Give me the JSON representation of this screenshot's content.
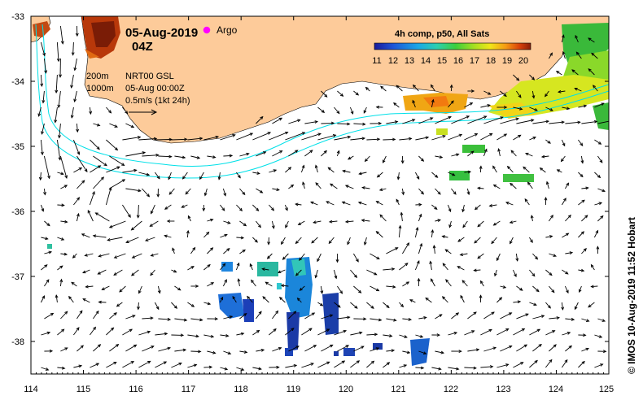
{
  "map": {
    "title_date": "05-Aug-2019",
    "title_time": "04Z",
    "argo_label": "Argo",
    "isobaths": [
      "200m",
      "1000m"
    ],
    "product": "NRT00 GSL",
    "analysis_time": "05-Aug 00:00Z",
    "vector_scale": "0.5m/s (1kt 24h)",
    "credit": "© IMOS 10-Aug-2019 11:52 Hobart",
    "lon_ticks": [
      "114",
      "115",
      "116",
      "117",
      "118",
      "119",
      "120",
      "121",
      "122",
      "123",
      "124",
      "125"
    ],
    "lat_ticks": [
      "-33",
      "-34",
      "-35",
      "-36",
      "-37",
      "-38"
    ],
    "lon_range": [
      114,
      125
    ],
    "lat_range": [
      -38.5,
      -33
    ],
    "colours": {
      "land": "#fdcb9a",
      "ocean": "#ffffff",
      "isobath": "#00e0e8",
      "argo": "#ff00ff"
    }
  },
  "colorbar": {
    "title": "4h comp, p50, All Sats",
    "labels": [
      "11",
      "12",
      "13",
      "14",
      "15",
      "16",
      "17",
      "18",
      "19",
      "20"
    ]
  }
}
